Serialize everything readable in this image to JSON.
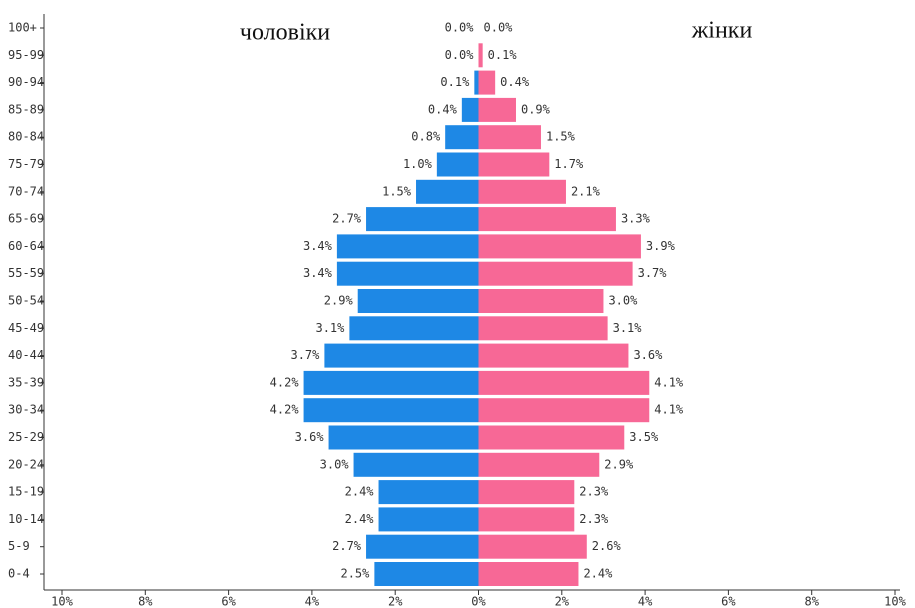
{
  "chart_data": {
    "type": "pyramid",
    "categories": [
      "100+",
      "95-99",
      "90-94",
      "85-89",
      "80-84",
      "75-79",
      "70-74",
      "65-69",
      "60-64",
      "55-59",
      "50-54",
      "45-49",
      "40-44",
      "35-39",
      "30-34",
      "25-29",
      "20-24",
      "15-19",
      "10-14",
      "5-9",
      "0-4"
    ],
    "series": [
      {
        "name": "чоловіки",
        "color": "#1e88e5",
        "values": [
          0,
          0,
          -0.1,
          -0.4,
          -0.8,
          -1.0,
          -1.5,
          -2.7,
          -3.4,
          -3.4,
          -2.9,
          -3.1,
          -3.7,
          -4.2,
          -4.2,
          -3.6,
          -3.0,
          -2.4,
          -2.4,
          -2.7,
          -2.5
        ],
        "value_labels": [
          "0.0%",
          "0.0%",
          "0.1%",
          "0.4%",
          "0.8%",
          "1.0%",
          "1.5%",
          "2.7%",
          "3.4%",
          "3.4%",
          "2.9%",
          "3.1%",
          "3.7%",
          "4.2%",
          "4.2%",
          "3.6%",
          "3.0%",
          "2.4%",
          "2.4%",
          "2.7%",
          "2.5%"
        ]
      },
      {
        "name": "жінки",
        "color": "#f76896",
        "values": [
          0.0,
          0.1,
          0.4,
          0.9,
          1.5,
          1.7,
          2.1,
          3.3,
          3.9,
          3.7,
          3.0,
          3.1,
          3.6,
          4.1,
          4.1,
          3.5,
          2.9,
          2.3,
          2.3,
          2.6,
          2.4
        ],
        "value_labels": [
          "0.0%",
          "0.1%",
          "0.4%",
          "0.9%",
          "1.5%",
          "1.7%",
          "2.1%",
          "3.3%",
          "3.9%",
          "3.7%",
          "3.0%",
          "3.1%",
          "3.6%",
          "4.1%",
          "4.1%",
          "3.5%",
          "2.9%",
          "2.3%",
          "2.3%",
          "2.6%",
          "2.4%"
        ]
      }
    ],
    "xlim": [
      -10,
      10
    ],
    "xticks": [
      {
        "value": -10,
        "label": "10%"
      },
      {
        "value": -8,
        "label": "8%"
      },
      {
        "value": -6,
        "label": "6%"
      },
      {
        "value": -4,
        "label": "4%"
      },
      {
        "value": -2,
        "label": "2%"
      },
      {
        "value": 0,
        "label": "0%"
      },
      {
        "value": 2,
        "label": "2%"
      },
      {
        "value": 4,
        "label": "4%"
      },
      {
        "value": 6,
        "label": "6%"
      },
      {
        "value": 8,
        "label": "8%"
      },
      {
        "value": 10,
        "label": "10%"
      }
    ]
  }
}
